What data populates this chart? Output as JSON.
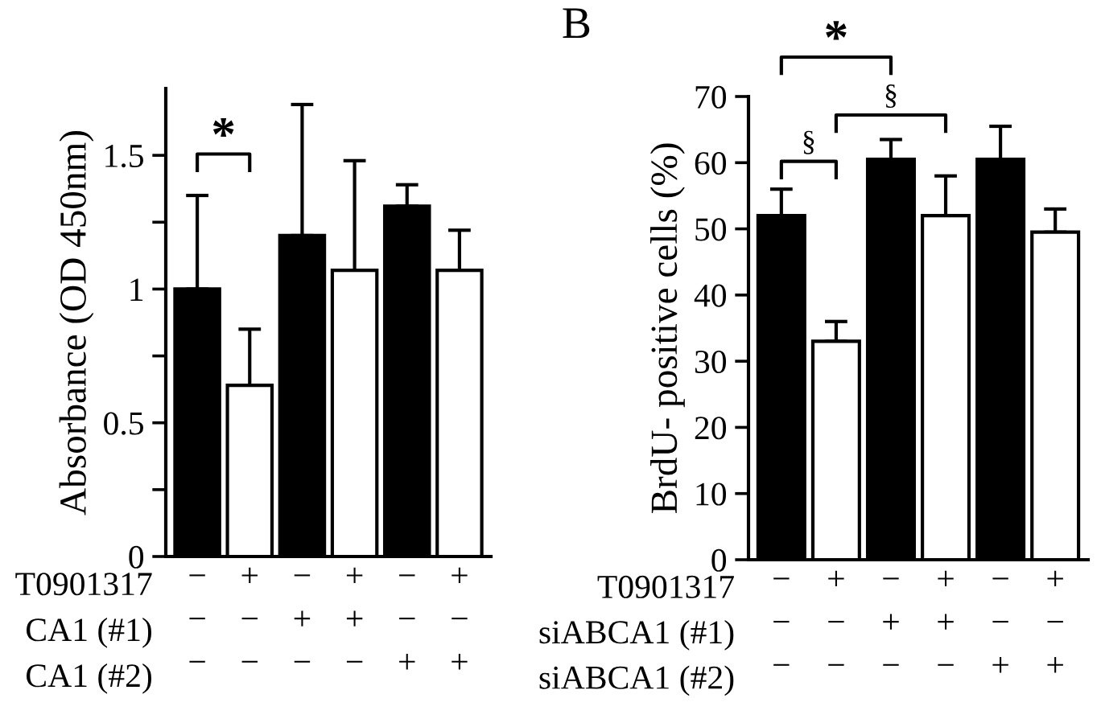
{
  "chart_data": [
    {
      "type": "bar",
      "ylabel": "Absorbance (OD 450nm)",
      "categories": [
        "−\n−\n−",
        "+\n−\n−",
        "−\n+\n−",
        "+\n+\n−",
        "−\n−\n+",
        "+\n−\n+"
      ],
      "values": [
        1.0,
        0.64,
        1.2,
        1.07,
        1.31,
        1.07
      ],
      "colors": [
        "#000000",
        "#ffffff",
        "#000000",
        "#ffffff",
        "#000000",
        "#ffffff"
      ],
      "errors": [
        [
          1.0,
          1.35
        ],
        [
          0.64,
          0.85
        ],
        [
          1.2,
          1.69
        ],
        [
          1.07,
          1.48
        ],
        [
          1.31,
          1.39
        ],
        [
          1.07,
          1.22
        ]
      ],
      "ylim": [
        0,
        1.75
      ],
      "yticks": [
        0,
        {
          "value": 0.25,
          "label": null
        },
        0.5,
        {
          "value": 0.75,
          "label": null
        },
        1,
        {
          "value": 1.25,
          "label": null
        },
        1.5
      ],
      "annotations": [
        "T0901317",
        "CA1 (#1)",
        "CA1 (#2)",
        "*"
      ]
    },
    {
      "type": "bar",
      "title": "B",
      "ylabel": "BrdU- positive cells (%)",
      "categories": [
        "−\n−\n−",
        "+\n−\n−",
        "−\n+\n−",
        "+\n+\n−",
        "−\n−\n+",
        "+\n−\n+"
      ],
      "values": [
        52,
        33,
        60.5,
        52,
        60.5,
        49.5
      ],
      "colors": [
        "#000000",
        "#ffffff",
        "#000000",
        "#ffffff",
        "#000000",
        "#ffffff"
      ],
      "errors": [
        [
          52,
          56
        ],
        [
          33,
          36
        ],
        [
          60.5,
          63.5
        ],
        [
          52,
          58
        ],
        [
          60.5,
          65.5
        ],
        [
          49.5,
          53
        ]
      ],
      "ylim": [
        0,
        70
      ],
      "yticks": [
        0,
        10,
        20,
        30,
        40,
        50,
        60,
        70
      ],
      "annotations": [
        "T0901317",
        "siABCA1 (#1)",
        "siABCA1 (#2)",
        "*",
        "§",
        "§"
      ]
    }
  ]
}
